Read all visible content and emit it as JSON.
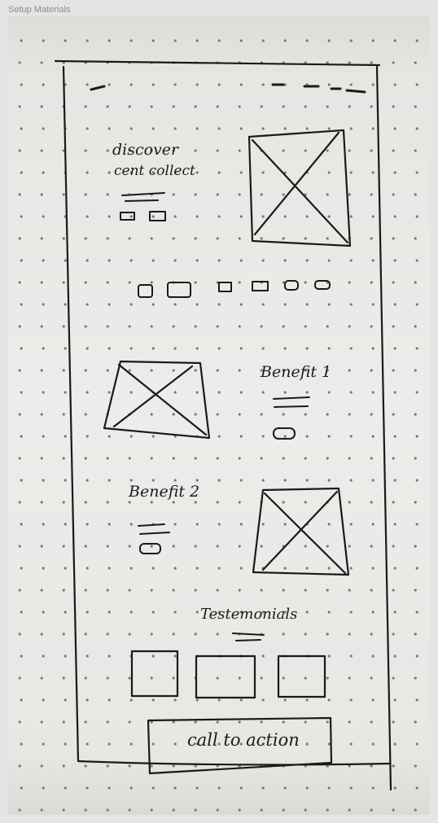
{
  "frame": {
    "title": "Setup Materials"
  },
  "sketch": {
    "hero": {
      "heading_line1": "discover",
      "heading_line2": "cent collect"
    },
    "benefit1": {
      "label": "Benefit 1"
    },
    "benefit2": {
      "label": "Benefit 2"
    },
    "testimonials": {
      "label": "Testemonials"
    },
    "cta": {
      "label": "call to action"
    }
  },
  "colors": {
    "ink": "#1a1a1a",
    "paper": "#ececea",
    "canvas": "#e5e5e5"
  }
}
